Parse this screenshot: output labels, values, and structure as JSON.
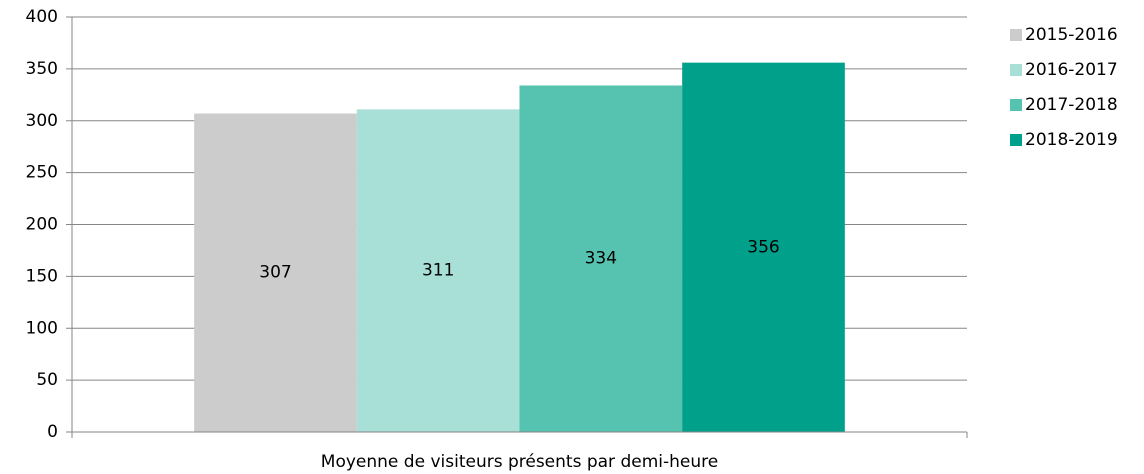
{
  "chart_data": {
    "type": "bar",
    "categories": [
      "Moyenne de visiteurs présents par demi-heure"
    ],
    "series": [
      {
        "name": "2015-2016",
        "color": "#cccccc",
        "values": [
          307
        ]
      },
      {
        "name": "2016-2017",
        "color": "#a8e0d8",
        "values": [
          311
        ]
      },
      {
        "name": "2017-2018",
        "color": "#56c2b0",
        "values": [
          334
        ]
      },
      {
        "name": "2018-2019",
        "color": "#00a08a",
        "values": [
          356
        ]
      }
    ],
    "ylim": [
      0,
      400
    ],
    "yticks": [
      0,
      50,
      100,
      150,
      200,
      250,
      300,
      350,
      400
    ],
    "grid": true,
    "legend": "right",
    "data_labels": true
  }
}
